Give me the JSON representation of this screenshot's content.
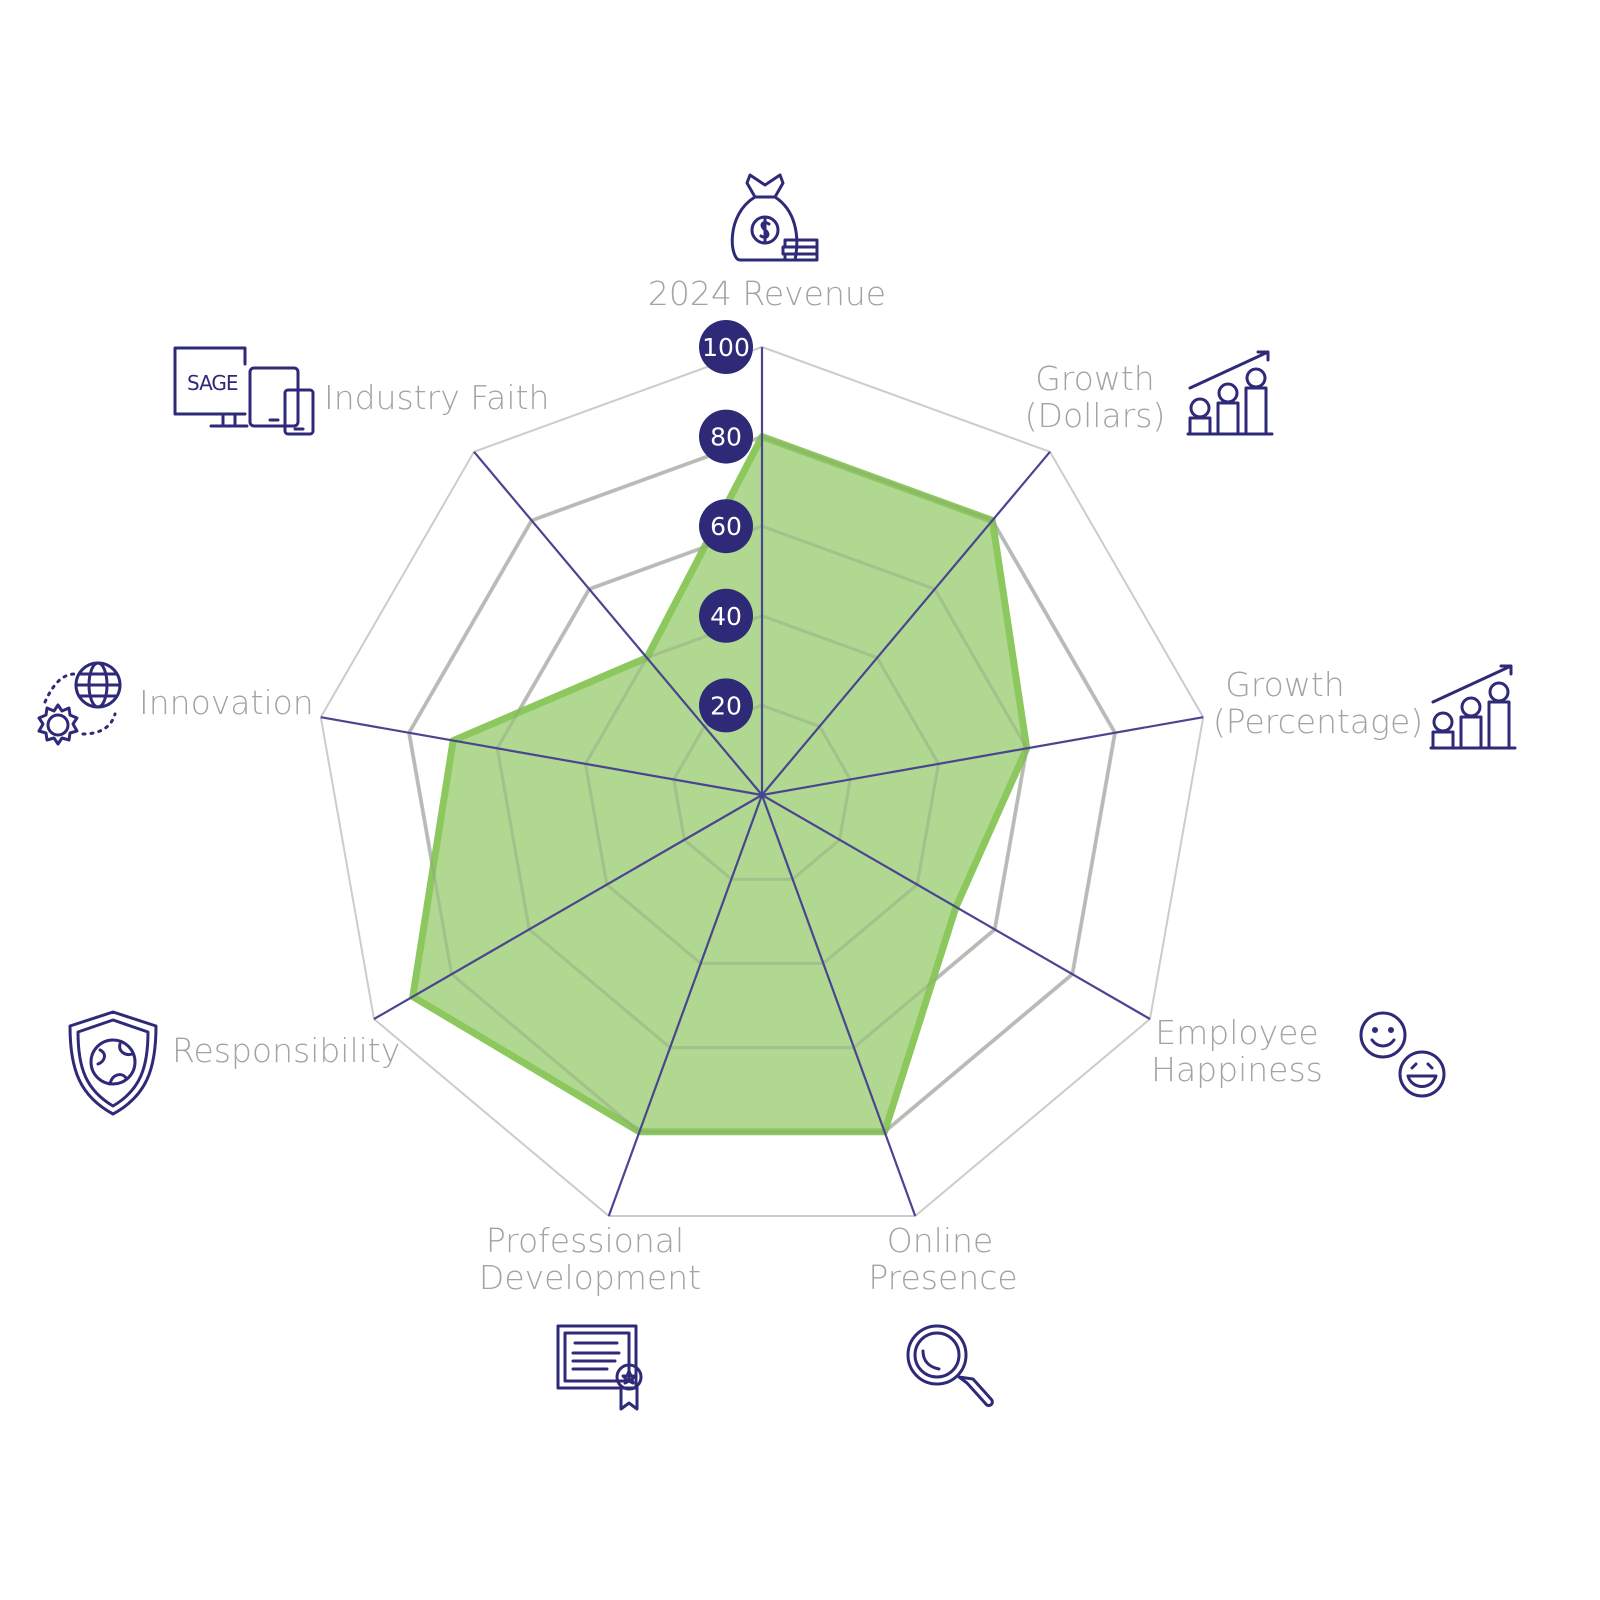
{
  "chart_data": {
    "type": "radar",
    "axes": [
      {
        "label": [
          "2024 Revenue"
        ],
        "value": 80,
        "icon": "money-bag-icon"
      },
      {
        "label": [
          "Growth",
          "(Dollars)"
        ],
        "value": 80,
        "icon": "coin-stacks-growth-icon"
      },
      {
        "label": [
          "Growth",
          "(Percentage)"
        ],
        "value": 60,
        "icon": "coin-stacks-growth-icon"
      },
      {
        "label": [
          "Employee",
          "Happiness"
        ],
        "value": 50,
        "icon": "smiley-faces-icon"
      },
      {
        "label": [
          "Online",
          "Presence"
        ],
        "value": 80,
        "icon": "magnifier-icon"
      },
      {
        "label": [
          "Professional",
          "Development"
        ],
        "value": 80,
        "icon": "certificate-icon"
      },
      {
        "label": [
          "Responsibility"
        ],
        "value": 90,
        "icon": "globe-shield-icon"
      },
      {
        "label": [
          "Innovation"
        ],
        "value": 70,
        "icon": "globe-gear-icon"
      },
      {
        "label": [
          "Industry Faith"
        ],
        "value": 40,
        "icon": "sage-devices-icon"
      }
    ],
    "range": [
      0,
      100
    ],
    "ticks": [
      "20",
      "40",
      "60",
      "80",
      "100"
    ],
    "grid": true,
    "icon_text": "SAGE",
    "colors": {
      "fill": "#acd68a",
      "stroke": "#8cc85e",
      "axis": "#4a4590",
      "grid": "#cccccc",
      "tick_badge": "#2e2a78",
      "label": "#a3a3a3"
    }
  }
}
